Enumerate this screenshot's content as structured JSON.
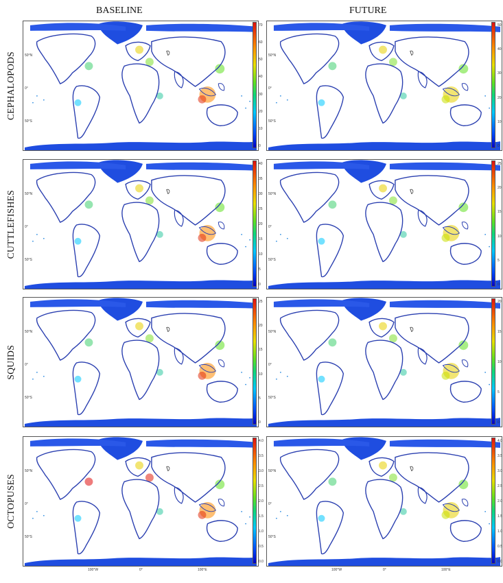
{
  "columns": [
    "BASELINE",
    "FUTURE"
  ],
  "rows": [
    {
      "label": "CEPHALOPODS",
      "baseline_ticks": [
        "70",
        "60",
        "50",
        "40",
        "30",
        "20",
        "10",
        "0"
      ],
      "future_ticks": [
        "50",
        "40",
        "30",
        "20",
        "10",
        "0"
      ]
    },
    {
      "label": "CUTTLEFISHES",
      "baseline_ticks": [
        "40",
        "35",
        "30",
        "25",
        "20",
        "15",
        "10",
        "5",
        "0"
      ],
      "future_ticks": [
        "25",
        "20",
        "15",
        "10",
        "5",
        "0"
      ]
    },
    {
      "label": "SQUIDS",
      "baseline_ticks": [
        "25",
        "20",
        "15",
        "10",
        "5",
        "0"
      ],
      "future_ticks": [
        "20",
        "15",
        "10",
        "5",
        "0"
      ]
    },
    {
      "label": "OCTOPUSES",
      "baseline_ticks": [
        "4.0",
        "3.5",
        "3.0",
        "2.5",
        "2.0",
        "1.5",
        "1.0",
        "0.5",
        "0.0"
      ],
      "future_ticks": [
        "4.0",
        "3.5",
        "3.0",
        "2.5",
        "2.0",
        "1.5",
        "1.0",
        "0.5",
        "0.0"
      ]
    }
  ],
  "lat_labels": [
    "50°N",
    "0°",
    "50°S"
  ],
  "lon_labels": [
    "100°W",
    "0°",
    "100°E"
  ],
  "colors": {
    "land_outline": "#2a3fb0",
    "polar": "#1f4de0",
    "hot": "#e01010",
    "warm": "#ffa000",
    "mid": "#20d070",
    "cool": "#00c8ff"
  }
}
